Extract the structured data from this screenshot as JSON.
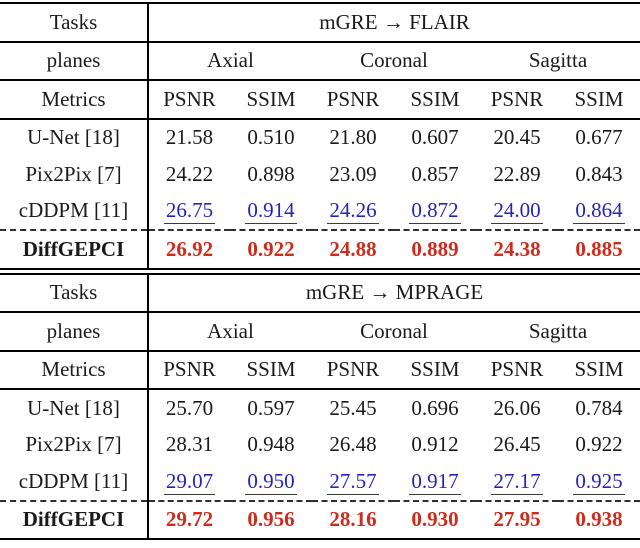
{
  "colors": {
    "best_value": "#cf2b1d",
    "second_best_value": "#2424bd",
    "text": "#1a1a1a",
    "rule": "#000000"
  },
  "tables": [
    {
      "header": {
        "tasks_label": "Tasks",
        "task": "mGRE → FLAIR",
        "planes_label": "planes",
        "planes": [
          "Axial",
          "Coronal",
          "Sagitta"
        ],
        "metrics_label": "Metrics",
        "metrics": [
          "PSNR",
          "SSIM",
          "PSNR",
          "SSIM",
          "PSNR",
          "SSIM"
        ]
      },
      "rows": [
        {
          "label": "U-Net [18]",
          "emphasis": "none",
          "values": [
            "21.58",
            "0.510",
            "21.80",
            "0.607",
            "20.45",
            "0.677"
          ]
        },
        {
          "label": "Pix2Pix [7]",
          "emphasis": "none",
          "values": [
            "24.22",
            "0.898",
            "23.09",
            "0.857",
            "22.89",
            "0.843"
          ]
        },
        {
          "label": "cDDPM [11]",
          "emphasis": "second-best",
          "values": [
            "26.75",
            "0.914",
            "24.26",
            "0.872",
            "24.00",
            "0.864"
          ]
        },
        {
          "label": "DiffGEPCI",
          "emphasis": "best",
          "values": [
            "26.92",
            "0.922",
            "24.88",
            "0.889",
            "24.38",
            "0.885"
          ]
        }
      ]
    },
    {
      "header": {
        "tasks_label": "Tasks",
        "task": "mGRE → MPRAGE",
        "planes_label": "planes",
        "planes": [
          "Axial",
          "Coronal",
          "Sagitta"
        ],
        "metrics_label": "Metrics",
        "metrics": [
          "PSNR",
          "SSIM",
          "PSNR",
          "SSIM",
          "PSNR",
          "SSIM"
        ]
      },
      "rows": [
        {
          "label": "U-Net [18]",
          "emphasis": "none",
          "values": [
            "25.70",
            "0.597",
            "25.45",
            "0.696",
            "26.06",
            "0.784"
          ]
        },
        {
          "label": "Pix2Pix [7]",
          "emphasis": "none",
          "values": [
            "28.31",
            "0.948",
            "26.48",
            "0.912",
            "26.45",
            "0.922"
          ]
        },
        {
          "label": "cDDPM [11]",
          "emphasis": "second-best",
          "values": [
            "29.07",
            "0.950",
            "27.57",
            "0.917",
            "27.17",
            "0.925"
          ]
        },
        {
          "label": "DiffGEPCI",
          "emphasis": "best",
          "values": [
            "29.72",
            "0.956",
            "28.16",
            "0.930",
            "27.95",
            "0.938"
          ]
        }
      ]
    }
  ]
}
